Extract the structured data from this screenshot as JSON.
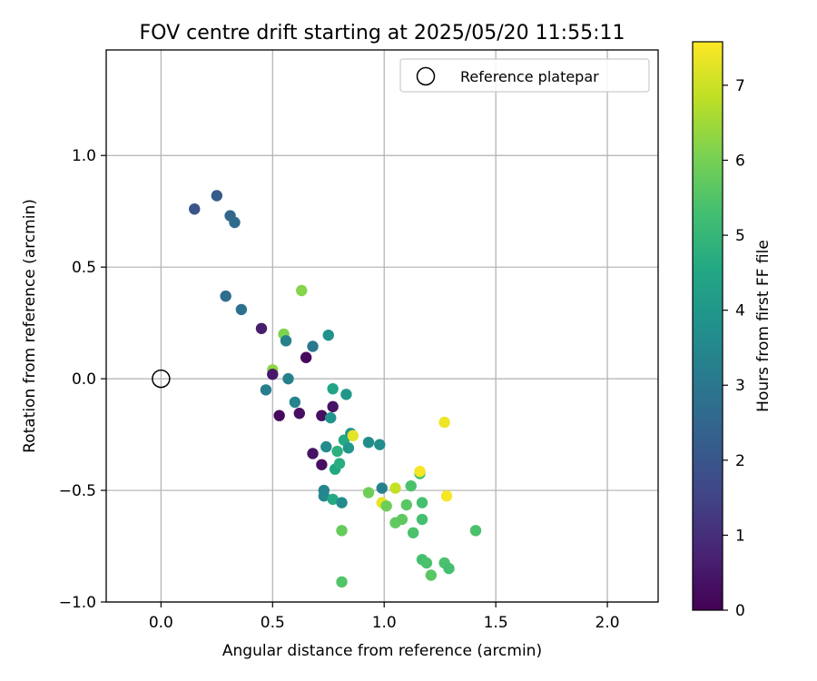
{
  "chart_data": {
    "type": "scatter",
    "title": "FOV centre drift starting at 2025/05/20 11:55:11",
    "xlabel": "Angular distance from reference (arcmin)",
    "ylabel": "Rotation from reference (arcmin)",
    "xlim": [
      -0.2455,
      2.2275
    ],
    "ylim": [
      -1.0,
      1.4727
    ],
    "xticks": [
      0.0,
      0.5,
      1.0,
      1.5,
      2.0
    ],
    "xtick_labels": [
      "0.0",
      "0.5",
      "1.0",
      "1.5",
      "2.0"
    ],
    "yticks": [
      -1.0,
      -0.5,
      0.0,
      0.5,
      1.0
    ],
    "ytick_labels": [
      "−1.0",
      "−0.5",
      "0.0",
      "0.5",
      "1.0"
    ],
    "grid": true,
    "legend": {
      "position": "top-right",
      "entries": [
        "Reference platepar"
      ]
    },
    "reference_point": {
      "x": 0.0,
      "y": 0.0,
      "label": "Reference platepar"
    },
    "colorbar": {
      "label": "Hours from first FF file",
      "colormap": "viridis",
      "range": [
        0,
        7.58
      ],
      "ticks": [
        0,
        1,
        2,
        3,
        4,
        5,
        6,
        7
      ],
      "tick_labels": [
        "0",
        "1",
        "2",
        "3",
        "4",
        "5",
        "6",
        "7"
      ]
    },
    "points": [
      {
        "x": 0.15,
        "y": 0.76,
        "c": 2.0
      },
      {
        "x": 0.25,
        "y": 0.82,
        "c": 2.2
      },
      {
        "x": 0.31,
        "y": 0.73,
        "c": 2.5
      },
      {
        "x": 0.33,
        "y": 0.7,
        "c": 2.6
      },
      {
        "x": 0.29,
        "y": 0.37,
        "c": 2.7
      },
      {
        "x": 0.36,
        "y": 0.31,
        "c": 2.8
      },
      {
        "x": 0.45,
        "y": 0.225,
        "c": 0.6
      },
      {
        "x": 0.5,
        "y": 0.04,
        "c": 6.3
      },
      {
        "x": 0.5,
        "y": 0.02,
        "c": 0.5
      },
      {
        "x": 0.47,
        "y": -0.05,
        "c": 3.2
      },
      {
        "x": 0.53,
        "y": -0.165,
        "c": 0.2
      },
      {
        "x": 0.55,
        "y": 0.2,
        "c": 6.1
      },
      {
        "x": 0.56,
        "y": 0.17,
        "c": 3.3
      },
      {
        "x": 0.57,
        "y": 0.0,
        "c": 3.3
      },
      {
        "x": 0.6,
        "y": -0.105,
        "c": 3.4
      },
      {
        "x": 0.62,
        "y": -0.155,
        "c": 0.3
      },
      {
        "x": 0.63,
        "y": 0.395,
        "c": 6.2
      },
      {
        "x": 0.65,
        "y": 0.095,
        "c": 0.2
      },
      {
        "x": 0.68,
        "y": 0.145,
        "c": 3.0
      },
      {
        "x": 0.68,
        "y": -0.335,
        "c": 0.4
      },
      {
        "x": 0.72,
        "y": -0.165,
        "c": 0.3
      },
      {
        "x": 0.72,
        "y": -0.385,
        "c": 0.3
      },
      {
        "x": 0.73,
        "y": -0.5,
        "c": 3.4
      },
      {
        "x": 0.73,
        "y": -0.525,
        "c": 3.5
      },
      {
        "x": 0.74,
        "y": -0.305,
        "c": 3.6
      },
      {
        "x": 0.75,
        "y": 0.195,
        "c": 3.8
      },
      {
        "x": 0.76,
        "y": -0.175,
        "c": 3.9
      },
      {
        "x": 0.77,
        "y": -0.125,
        "c": 0.4
      },
      {
        "x": 0.77,
        "y": -0.045,
        "c": 4.4
      },
      {
        "x": 0.77,
        "y": -0.54,
        "c": 4.6
      },
      {
        "x": 0.78,
        "y": -0.405,
        "c": 4.5
      },
      {
        "x": 0.79,
        "y": -0.325,
        "c": 4.8
      },
      {
        "x": 0.8,
        "y": -0.38,
        "c": 4.7
      },
      {
        "x": 0.81,
        "y": -0.68,
        "c": 5.8
      },
      {
        "x": 0.81,
        "y": -0.91,
        "c": 5.5
      },
      {
        "x": 0.81,
        "y": -0.555,
        "c": 3.6
      },
      {
        "x": 0.82,
        "y": -0.275,
        "c": 4.6
      },
      {
        "x": 0.83,
        "y": -0.07,
        "c": 4.0
      },
      {
        "x": 0.84,
        "y": -0.31,
        "c": 4.0
      },
      {
        "x": 0.85,
        "y": -0.245,
        "c": 3.9
      },
      {
        "x": 0.86,
        "y": -0.255,
        "c": 7.3
      },
      {
        "x": 0.93,
        "y": -0.285,
        "c": 3.7
      },
      {
        "x": 0.93,
        "y": -0.51,
        "c": 5.9
      },
      {
        "x": 0.98,
        "y": -0.295,
        "c": 3.7
      },
      {
        "x": 0.99,
        "y": -0.49,
        "c": 3.3
      },
      {
        "x": 0.99,
        "y": -0.555,
        "c": 7.3
      },
      {
        "x": 1.01,
        "y": -0.57,
        "c": 5.9
      },
      {
        "x": 1.05,
        "y": -0.49,
        "c": 6.9
      },
      {
        "x": 1.05,
        "y": -0.645,
        "c": 5.7
      },
      {
        "x": 1.08,
        "y": -0.63,
        "c": 5.7
      },
      {
        "x": 1.1,
        "y": -0.565,
        "c": 5.6
      },
      {
        "x": 1.12,
        "y": -0.48,
        "c": 5.4
      },
      {
        "x": 1.13,
        "y": -0.69,
        "c": 5.4
      },
      {
        "x": 1.16,
        "y": -0.425,
        "c": 5.3
      },
      {
        "x": 1.16,
        "y": -0.415,
        "c": 7.5
      },
      {
        "x": 1.17,
        "y": -0.555,
        "c": 5.3
      },
      {
        "x": 1.17,
        "y": -0.63,
        "c": 5.3
      },
      {
        "x": 1.17,
        "y": -0.81,
        "c": 5.3
      },
      {
        "x": 1.19,
        "y": -0.825,
        "c": 5.4
      },
      {
        "x": 1.21,
        "y": -0.88,
        "c": 5.6
      },
      {
        "x": 1.27,
        "y": -0.825,
        "c": 5.4
      },
      {
        "x": 1.27,
        "y": -0.195,
        "c": 7.4
      },
      {
        "x": 1.28,
        "y": -0.525,
        "c": 7.5
      },
      {
        "x": 1.29,
        "y": -0.85,
        "c": 5.3
      },
      {
        "x": 1.41,
        "y": -0.68,
        "c": 5.4
      }
    ]
  }
}
